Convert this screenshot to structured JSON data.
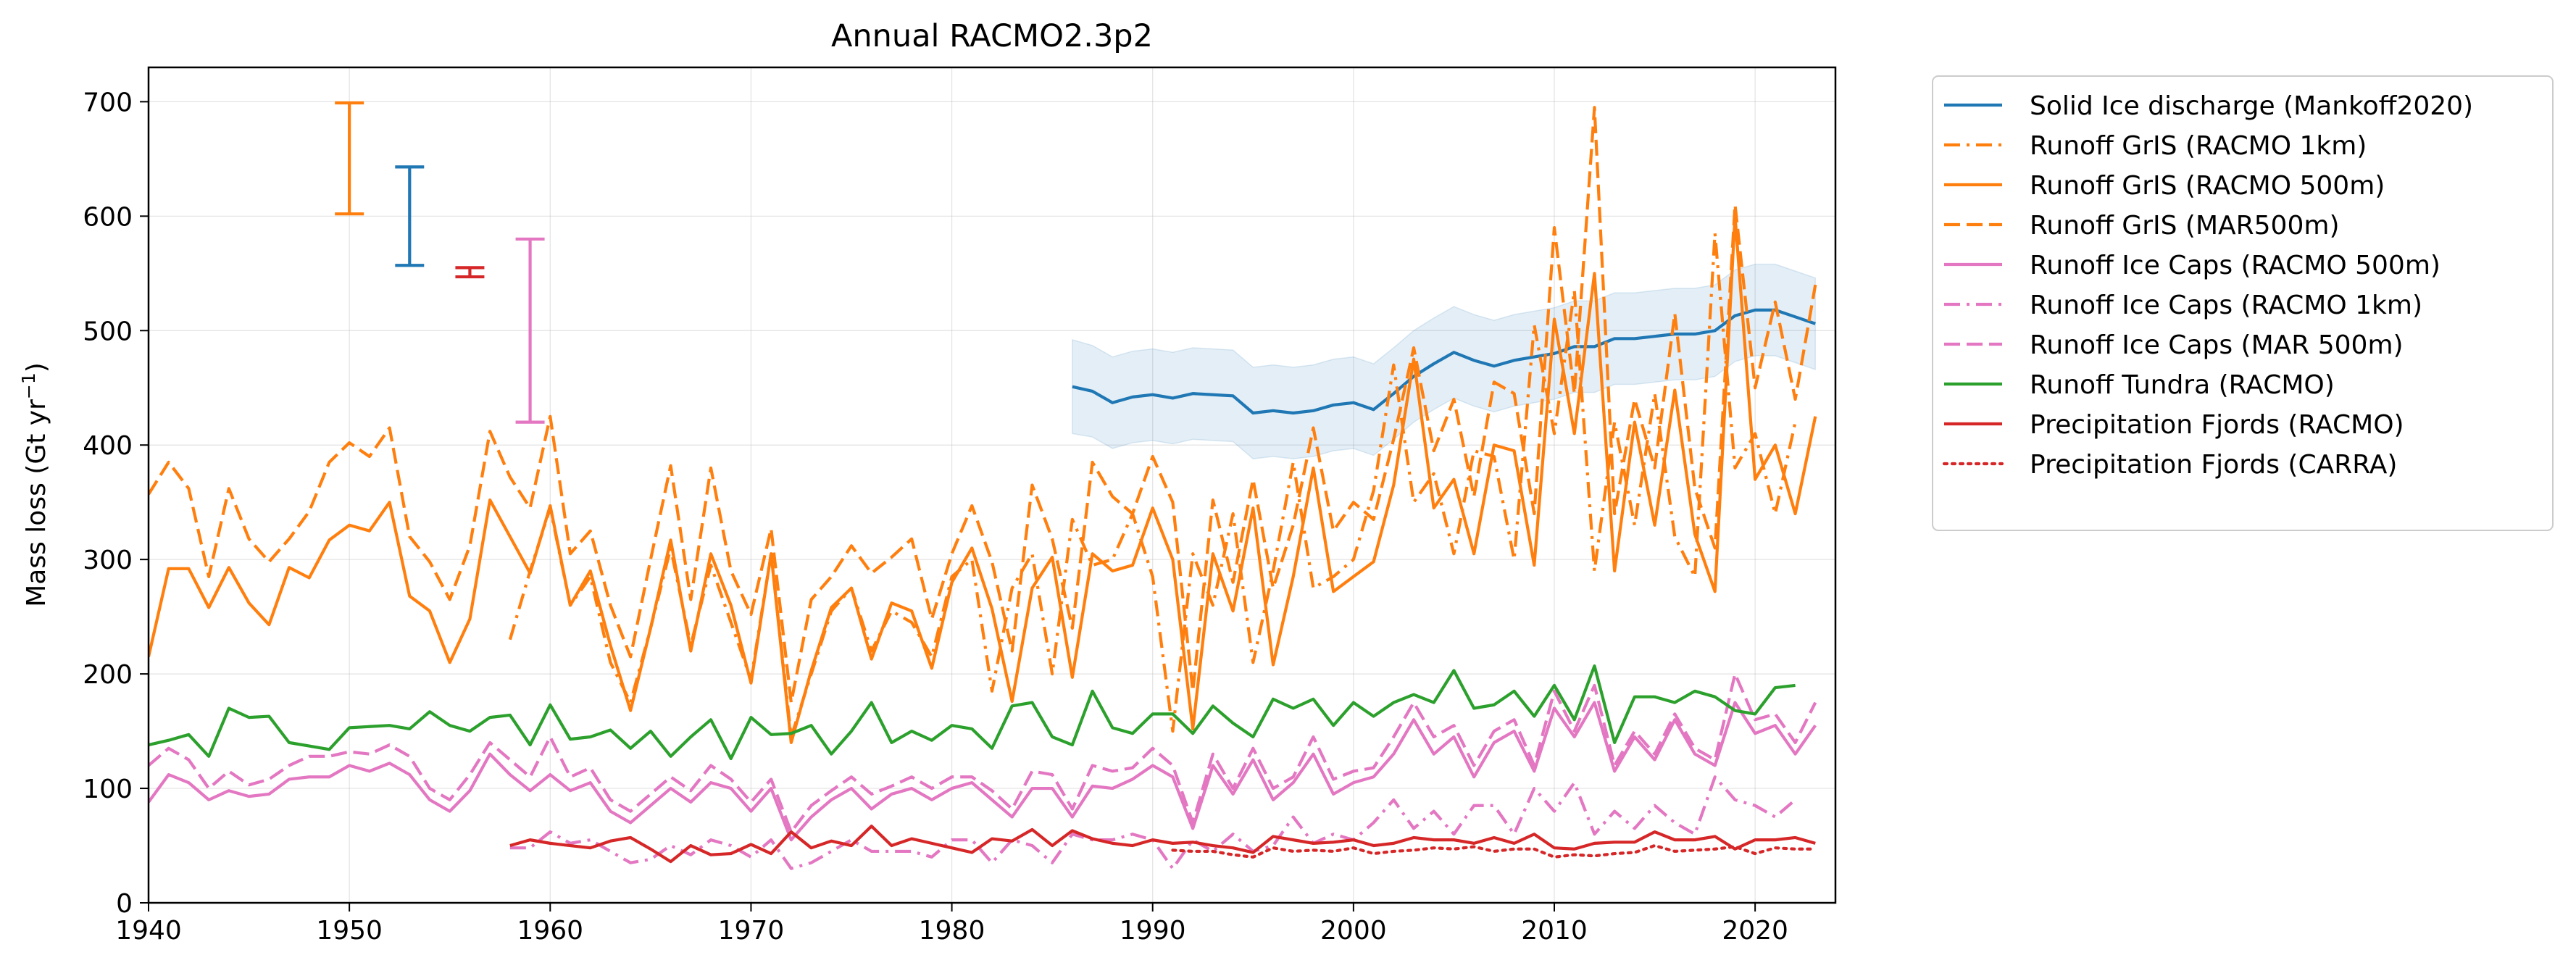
{
  "chart_data": {
    "type": "line",
    "title": "Annual RACMO2.3p2",
    "xlabel": "",
    "ylabel": "Mass loss (Gt yr",
    "ylabel_exp": "−1",
    "ylabel_close": ")",
    "xlim": [
      1940,
      2024
    ],
    "ylim": [
      0,
      730
    ],
    "xticks": [
      1940,
      1950,
      1960,
      1970,
      1980,
      1990,
      2000,
      2010,
      2020
    ],
    "yticks": [
      0,
      100,
      200,
      300,
      400,
      500,
      600,
      700
    ],
    "grid": true,
    "legend_position": "outside right",
    "series": [
      {
        "name": "Solid Ice discharge (Mankoff2020)",
        "color": "#1f77b4",
        "style": "solid",
        "x_start": 1986,
        "values": [
          451,
          447,
          437,
          442,
          444,
          441,
          445,
          444,
          443,
          428,
          430,
          428,
          430,
          435,
          437,
          431,
          445,
          460,
          471,
          481,
          474,
          469,
          474,
          477,
          480,
          486,
          486,
          493,
          493,
          495,
          497,
          497,
          500,
          513,
          518,
          518,
          512,
          506
        ],
        "band_lower": [
          410,
          407,
          397,
          402,
          404,
          401,
          405,
          404,
          403,
          388,
          390,
          388,
          390,
          395,
          397,
          391,
          405,
          420,
          431,
          441,
          434,
          429,
          434,
          437,
          440,
          446,
          446,
          453,
          453,
          455,
          457,
          457,
          460,
          473,
          478,
          478,
          472,
          466
        ],
        "band_upper": [
          492,
          487,
          477,
          482,
          484,
          481,
          485,
          484,
          483,
          468,
          470,
          468,
          470,
          475,
          477,
          471,
          485,
          500,
          511,
          521,
          514,
          509,
          514,
          517,
          520,
          526,
          526,
          533,
          533,
          535,
          537,
          537,
          540,
          553,
          558,
          558,
          552,
          546
        ]
      },
      {
        "name": "Runoff GrIS (RACMO 1km)",
        "color": "#ff7f0e",
        "style": "dashdot",
        "x_start": 1958,
        "values": [
          230,
          290,
          345,
          260,
          285,
          210,
          175,
          240,
          310,
          225,
          295,
          245,
          195,
          305,
          145,
          200,
          255,
          275,
          220,
          255,
          245,
          215,
          285,
          300,
          185,
          275,
          305,
          200,
          335,
          295,
          300,
          340,
          285,
          150,
          305,
          260,
          340,
          210,
          290,
          385,
          275,
          285,
          300,
          360,
          470,
          350,
          375,
          305,
          395,
          390,
          300,
          505,
          410,
          535,
          290,
          420,
          330,
          445,
          320,
          285,
          585,
          380,
          410,
          340,
          420
        ]
      },
      {
        "name": "Runoff GrIS (RACMO 500m)",
        "color": "#ff7f0e",
        "style": "solid",
        "x_start": 1940,
        "values": [
          215,
          292,
          292,
          258,
          293,
          262,
          243,
          293,
          284,
          317,
          330,
          325,
          350,
          268,
          255,
          210,
          248,
          352,
          320,
          288,
          347,
          260,
          290,
          225,
          168,
          240,
          317,
          220,
          305,
          260,
          192,
          305,
          140,
          203,
          258,
          275,
          213,
          262,
          255,
          205,
          280,
          310,
          257,
          176,
          275,
          302,
          197,
          305,
          290,
          295,
          345,
          300,
          152,
          305,
          255,
          345,
          208,
          285,
          380,
          272,
          285,
          298,
          365,
          475,
          345,
          370,
          305,
          400,
          395,
          295,
          510,
          410,
          550,
          290,
          420,
          330,
          448,
          322,
          272,
          600,
          370,
          400,
          340,
          425
        ]
      },
      {
        "name": "Runoff GrIS (MAR500m)",
        "color": "#ff7f0e",
        "style": "dashed",
        "x_start": 1940,
        "values": [
          357,
          385,
          362,
          285,
          362,
          318,
          298,
          318,
          342,
          385,
          402,
          390,
          415,
          320,
          298,
          265,
          312,
          412,
          372,
          345,
          425,
          305,
          325,
          260,
          215,
          300,
          382,
          265,
          380,
          290,
          252,
          327,
          175,
          265,
          285,
          312,
          288,
          302,
          318,
          248,
          305,
          347,
          298,
          220,
          365,
          318,
          240,
          385,
          355,
          340,
          390,
          350,
          185,
          352,
          280,
          370,
          275,
          330,
          415,
          325,
          350,
          335,
          405,
          485,
          395,
          440,
          355,
          455,
          445,
          340,
          590,
          445,
          695,
          340,
          440,
          380,
          515,
          362,
          310,
          610,
          450,
          525,
          440,
          540
        ]
      },
      {
        "name": "Runoff Ice Caps (RACMO 500m)",
        "color": "#e377c2",
        "style": "solid",
        "x_start": 1940,
        "values": [
          88,
          112,
          105,
          90,
          98,
          93,
          95,
          108,
          110,
          110,
          120,
          115,
          122,
          112,
          90,
          80,
          98,
          130,
          112,
          98,
          112,
          98,
          105,
          80,
          70,
          85,
          100,
          88,
          105,
          100,
          80,
          100,
          55,
          75,
          90,
          100,
          82,
          95,
          100,
          90,
          100,
          105,
          90,
          75,
          100,
          100,
          75,
          102,
          100,
          108,
          120,
          110,
          65,
          120,
          95,
          125,
          90,
          105,
          130,
          95,
          105,
          110,
          130,
          160,
          130,
          145,
          110,
          140,
          150,
          115,
          170,
          145,
          175,
          115,
          145,
          125,
          160,
          130,
          120,
          175,
          148,
          155,
          130,
          155
        ]
      },
      {
        "name": "Runoff Ice Caps (RACMO 1km)",
        "color": "#e377c2",
        "style": "dashdot",
        "x_start": 1958,
        "values": [
          48,
          48,
          62,
          52,
          55,
          45,
          35,
          38,
          50,
          42,
          55,
          50,
          40,
          55,
          30,
          35,
          45,
          55,
          45,
          45,
          45,
          40,
          55,
          55,
          35,
          55,
          50,
          35,
          60,
          55,
          55,
          60,
          55,
          30,
          55,
          45,
          60,
          45,
          50,
          75,
          52,
          60,
          55,
          70,
          90,
          65,
          80,
          60,
          85,
          85,
          60,
          100,
          80,
          105,
          60,
          80,
          65,
          85,
          70,
          60,
          110,
          90,
          85,
          75,
          90
        ]
      },
      {
        "name": "Runoff Ice Caps (MAR 500m)",
        "color": "#e377c2",
        "style": "dashed",
        "x_start": 1940,
        "values": [
          120,
          135,
          125,
          100,
          115,
          103,
          108,
          120,
          128,
          128,
          132,
          130,
          138,
          128,
          100,
          90,
          112,
          140,
          125,
          110,
          145,
          110,
          118,
          90,
          80,
          95,
          110,
          98,
          120,
          108,
          88,
          108,
          62,
          85,
          98,
          110,
          95,
          102,
          110,
          100,
          110,
          110,
          98,
          82,
          115,
          112,
          82,
          120,
          115,
          118,
          135,
          120,
          70,
          130,
          100,
          135,
          100,
          110,
          145,
          108,
          115,
          118,
          145,
          175,
          145,
          155,
          120,
          150,
          160,
          120,
          185,
          150,
          190,
          120,
          150,
          130,
          165,
          135,
          125,
          200,
          160,
          165,
          140,
          175
        ]
      },
      {
        "name": "Runoff Tundra (RACMO)",
        "color": "#2ca02c",
        "style": "solid",
        "x_start": 1940,
        "values": [
          138,
          142,
          147,
          128,
          170,
          162,
          163,
          140,
          137,
          134,
          153,
          154,
          155,
          152,
          167,
          155,
          150,
          162,
          164,
          138,
          173,
          143,
          145,
          151,
          135,
          150,
          128,
          145,
          160,
          126,
          162,
          147,
          148,
          155,
          130,
          150,
          175,
          140,
          150,
          142,
          155,
          152,
          135,
          172,
          175,
          145,
          138,
          185,
          153,
          148,
          165,
          165,
          148,
          172,
          157,
          145,
          178,
          170,
          178,
          155,
          175,
          163,
          175,
          182,
          175,
          203,
          170,
          173,
          185,
          163,
          190,
          160,
          207,
          140,
          180,
          180,
          175,
          185,
          180,
          168,
          165,
          188,
          190
        ]
      },
      {
        "name": "Precipitation Fjords (RACMO)",
        "color": "#d62728",
        "style": "solid",
        "x_start": 1958,
        "values": [
          50,
          55,
          52,
          50,
          48,
          54,
          57,
          47,
          36,
          50,
          42,
          43,
          51,
          43,
          62,
          48,
          54,
          50,
          67,
          50,
          56,
          52,
          48,
          44,
          56,
          54,
          64,
          50,
          63,
          56,
          52,
          50,
          55,
          52,
          53,
          50,
          48,
          44,
          58,
          55,
          52,
          53,
          55,
          50,
          52,
          57,
          55,
          55,
          52,
          57,
          52,
          60,
          48,
          47,
          52,
          53,
          53,
          62,
          55,
          55,
          58,
          47,
          55,
          55,
          57,
          52
        ]
      },
      {
        "name": "Precipitation Fjords (CARRA)",
        "color": "#d62728",
        "style": "dotted",
        "x_start": 1991,
        "values": [
          46,
          45,
          45,
          42,
          40,
          48,
          45,
          46,
          45,
          48,
          43,
          45,
          46,
          48,
          47,
          49,
          45,
          47,
          47,
          40,
          42,
          41,
          43,
          44,
          50,
          45,
          46,
          47,
          49,
          43,
          48,
          47,
          47
        ]
      }
    ],
    "error_bars": [
      {
        "x": 1950,
        "low": 602,
        "high": 699,
        "color": "#ff7f0e"
      },
      {
        "x": 1953,
        "low": 557,
        "high": 643,
        "color": "#1f77b4"
      },
      {
        "x": 1956,
        "low": 547,
        "high": 555,
        "color": "#d62728"
      },
      {
        "x": 1959,
        "low": 420,
        "high": 580,
        "color": "#e377c2"
      }
    ]
  }
}
